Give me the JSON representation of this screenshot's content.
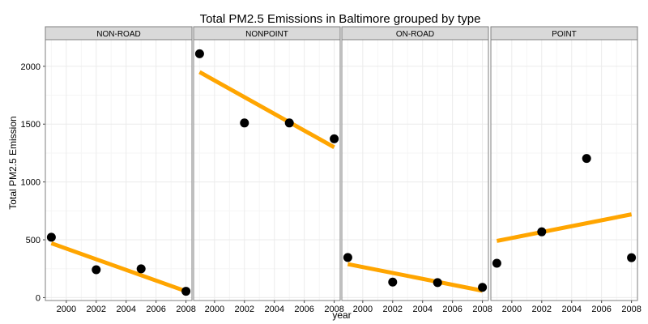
{
  "chart_data": {
    "type": "scatter",
    "title": "Total PM2.5 Emissions in Baltimore grouped by type",
    "xlabel": "year",
    "ylabel": "Total PM2.5 Emission",
    "xlim": [
      1998.6,
      2008.4
    ],
    "ylim": [
      -25,
      2230
    ],
    "x_ticks": [
      2000,
      2002,
      2004,
      2006,
      2008
    ],
    "y_ticks": [
      0,
      500,
      1000,
      1500,
      2000
    ],
    "grid": true,
    "colors": {
      "points": "#000000",
      "fit_line": "#FFA500",
      "strip": "#D9D9D9",
      "grid": "#EBEBEB",
      "panel_border": "#7F7F7F"
    },
    "panels": [
      {
        "name": "NON-ROAD",
        "points": [
          {
            "x": 1999,
            "y": 522
          },
          {
            "x": 2002,
            "y": 241
          },
          {
            "x": 2005,
            "y": 249
          },
          {
            "x": 2008,
            "y": 55
          }
        ],
        "fit": {
          "x": [
            1999,
            2008
          ],
          "y": [
            470,
            55
          ]
        }
      },
      {
        "name": "NONPOINT",
        "points": [
          {
            "x": 1999,
            "y": 2108
          },
          {
            "x": 2002,
            "y": 1510
          },
          {
            "x": 2005,
            "y": 1510
          },
          {
            "x": 2008,
            "y": 1373
          }
        ],
        "fit": {
          "x": [
            1999,
            2008
          ],
          "y": [
            1950,
            1300
          ]
        }
      },
      {
        "name": "ON-ROAD",
        "points": [
          {
            "x": 1999,
            "y": 347
          },
          {
            "x": 2002,
            "y": 134
          },
          {
            "x": 2005,
            "y": 130
          },
          {
            "x": 2008,
            "y": 89
          }
        ],
        "fit": {
          "x": [
            1999,
            2008
          ],
          "y": [
            290,
            60
          ]
        }
      },
      {
        "name": "POINT",
        "points": [
          {
            "x": 1999,
            "y": 297
          },
          {
            "x": 2002,
            "y": 569
          },
          {
            "x": 2005,
            "y": 1203
          },
          {
            "x": 2008,
            "y": 345
          }
        ],
        "fit": {
          "x": [
            1999,
            2008
          ],
          "y": [
            490,
            720
          ]
        }
      }
    ]
  }
}
